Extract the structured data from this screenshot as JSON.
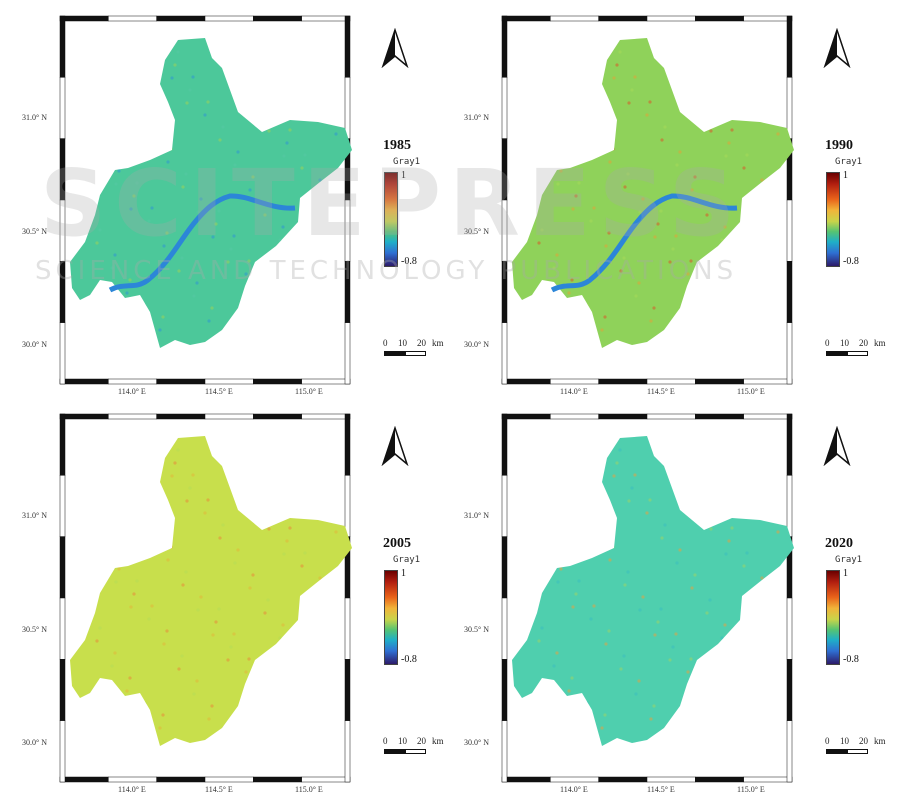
{
  "panels": [
    {
      "year": "1985",
      "legend_name": "Gray1",
      "max_label": "1",
      "min_label": "-0.8",
      "fill_color": "#4cc89a",
      "river": true,
      "lat_labels": [
        "31.0° N",
        "30.5° N",
        "30.0° N"
      ],
      "lon_labels": [
        "114.0° E",
        "114.5° E",
        "115.0° E"
      ],
      "scale": {
        "zero": "0",
        "ten": "10",
        "twenty": "20",
        "unit": "km"
      }
    },
    {
      "year": "1990",
      "legend_name": "Gray1",
      "max_label": "1",
      "min_label": "-0.8",
      "fill_color": "#8fd25a",
      "river": true,
      "lat_labels": [
        "31.0° N",
        "30.5° N",
        "30.0° N"
      ],
      "lon_labels": [
        "114.0° E",
        "114.5° E",
        "115.0° E"
      ],
      "scale": {
        "zero": "0",
        "ten": "10",
        "twenty": "20",
        "unit": "km"
      }
    },
    {
      "year": "2005",
      "legend_name": "Gray1",
      "max_label": "1",
      "min_label": "-0.8",
      "fill_color": "#c8df4c",
      "river": false,
      "lat_labels": [
        "31.0° N",
        "30.5° N",
        "30.0° N"
      ],
      "lon_labels": [
        "114.0° E",
        "114.5° E",
        "115.0° E"
      ],
      "scale": {
        "zero": "0",
        "ten": "10",
        "twenty": "20",
        "unit": "km"
      }
    },
    {
      "year": "2020",
      "legend_name": "Gray1",
      "max_label": "1",
      "min_label": "-0.8",
      "fill_color": "#4fcfae",
      "river": false,
      "lat_labels": [
        "31.0° N",
        "30.5° N",
        "30.0° N"
      ],
      "lon_labels": [
        "114.0° E",
        "114.5° E",
        "115.0° E"
      ],
      "scale": {
        "zero": "0",
        "ten": "10",
        "twenty": "20",
        "unit": "km"
      }
    }
  ],
  "watermark": {
    "title": "SCITEPRESS",
    "subtitle": "SCIENCE AND TECHNOLOGY PUBLICATIONS"
  },
  "icons": {
    "north_arrow": "north-arrow-icon"
  }
}
